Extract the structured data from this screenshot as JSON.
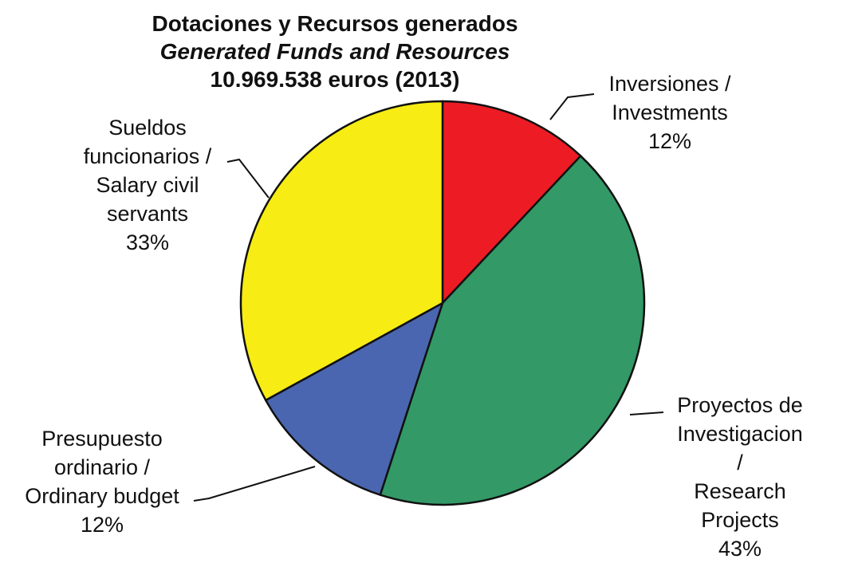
{
  "chart_data": {
    "type": "pie",
    "title": "Dotaciones y Recursos generados",
    "subtitle": "Generated Funds and Resources",
    "annotation": "10.969.538 euros (2013)",
    "categories": [
      "Inversiones /\nInvestments",
      "Proyectos de\nInvestigacion /\nResearch Projects",
      "Presupuesto\nordinario /\nOrdinary budget",
      "Sueldos\nfuncionarios /\nSalary civil\nservants"
    ],
    "values": [
      12,
      43,
      12,
      33
    ],
    "value_labels": [
      "12%",
      "43%",
      "12%",
      "33%"
    ],
    "colors": [
      "#ed1c24",
      "#339966",
      "#4a66b0",
      "#f7ec14"
    ]
  }
}
